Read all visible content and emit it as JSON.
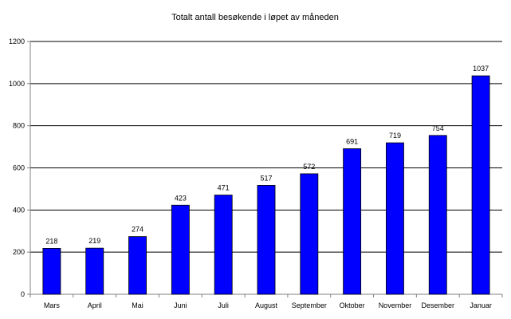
{
  "chart_data": {
    "type": "bar",
    "title": "Totalt antall besøkende i løpet av måneden",
    "xlabel": "",
    "ylabel": "",
    "categories": [
      "Mars",
      "April",
      "Mai",
      "Juni",
      "Juli",
      "August",
      "September",
      "Oktober",
      "November",
      "Desember",
      "Januar"
    ],
    "values": [
      218,
      219,
      274,
      423,
      471,
      517,
      572,
      691,
      719,
      754,
      1037
    ],
    "ylim": [
      0,
      1200
    ],
    "yticks": [
      0,
      200,
      400,
      600,
      800,
      1000,
      1200
    ],
    "grid": true,
    "legend": "none",
    "data_labels": true,
    "colors": {
      "bar_fill": "#0000FF",
      "bar_stroke": "#000000",
      "gridline": "#000000",
      "axis": "#808080",
      "background": "#FFFFFF"
    }
  }
}
